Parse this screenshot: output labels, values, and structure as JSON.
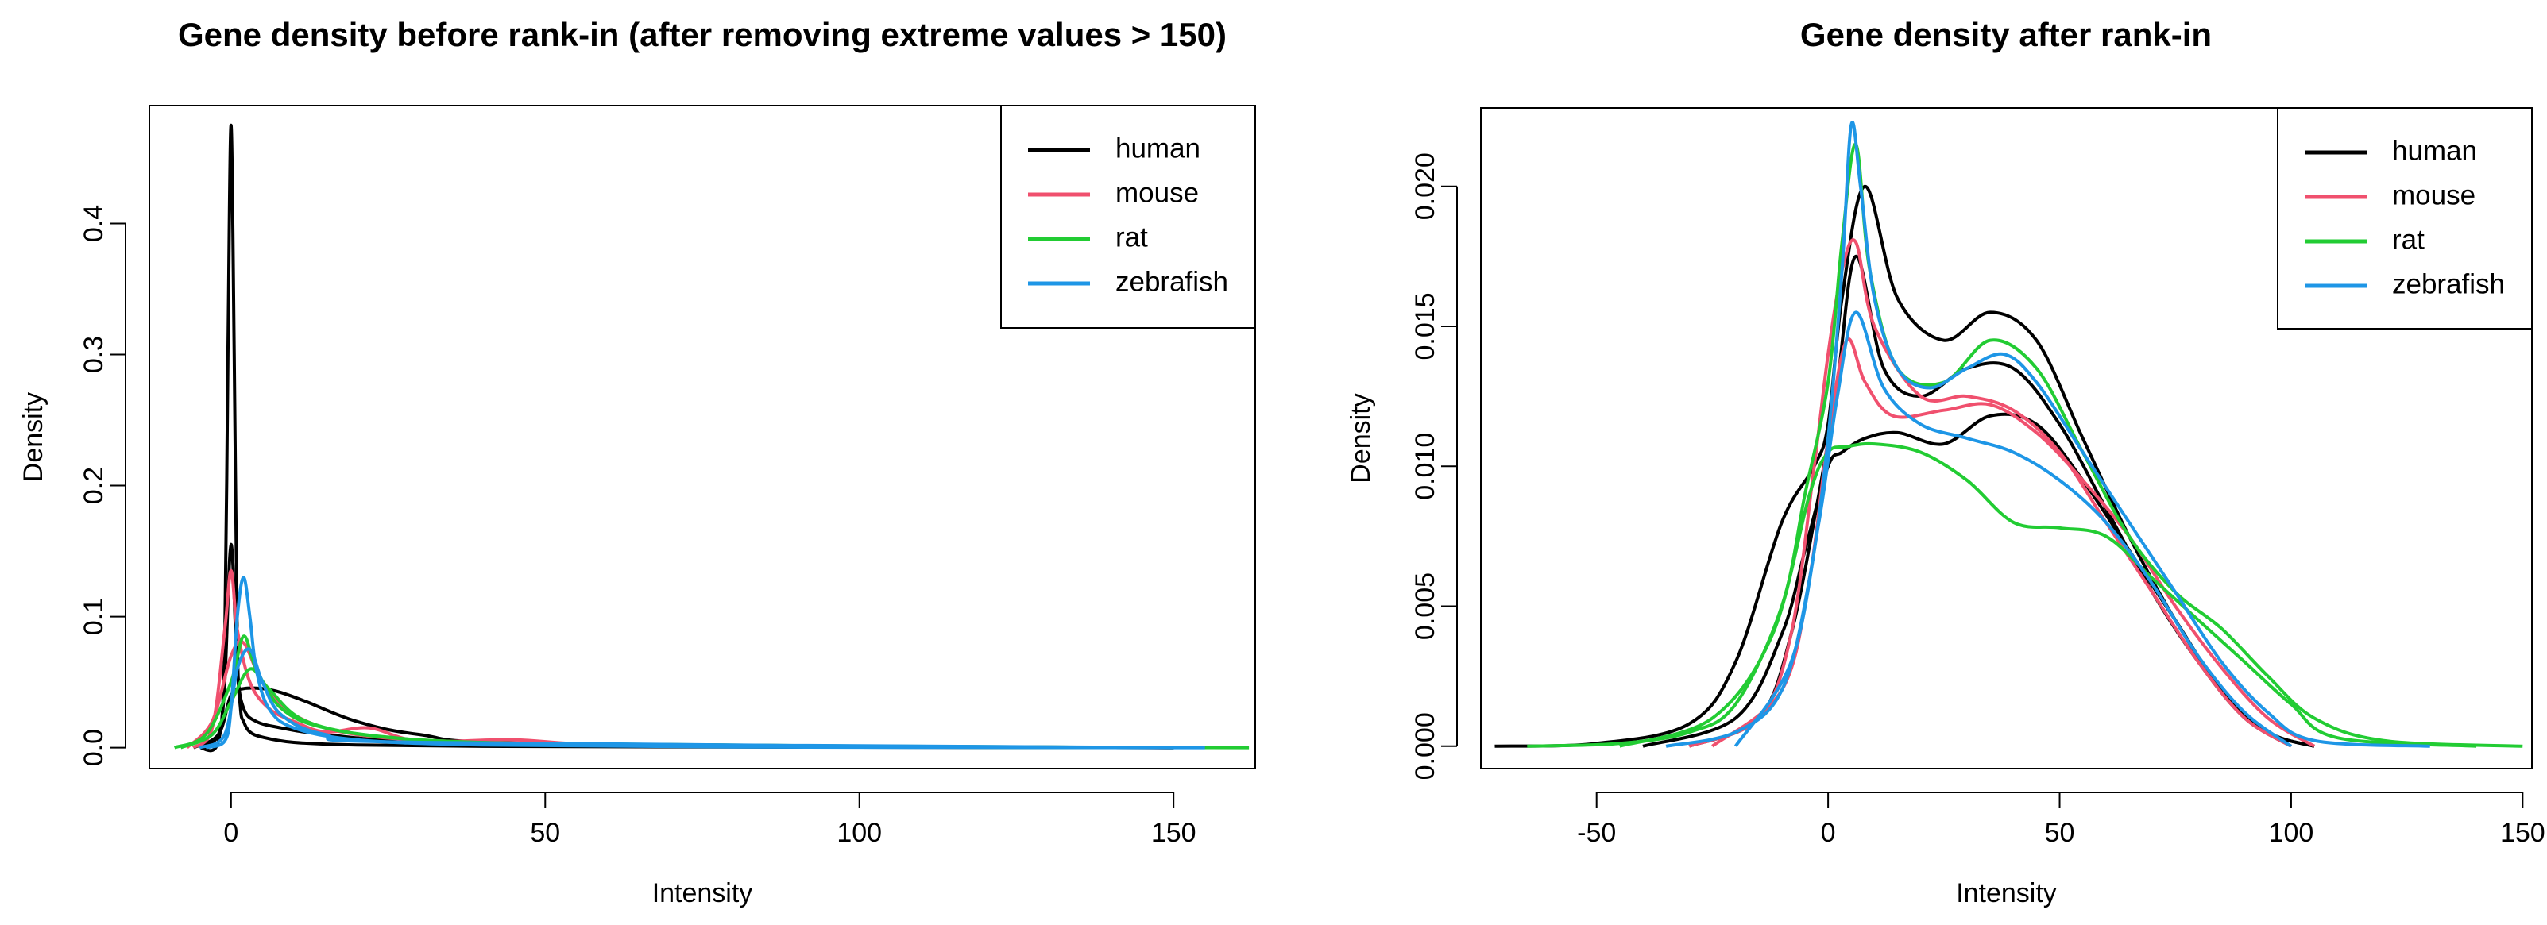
{
  "chart_data": [
    {
      "type": "line",
      "title": "Gene density before rank-in (after removing extreme values > 150)",
      "xlabel": "Intensity",
      "ylabel": "Density",
      "xlim": [
        -13,
        163
      ],
      "ylim": [
        -0.016,
        0.49
      ],
      "xticks": [
        0,
        50,
        100,
        150
      ],
      "yticks": [
        0.0,
        0.1,
        0.2,
        0.3,
        0.4
      ],
      "ytick_labels": [
        "0.0",
        "0.1",
        "0.2",
        "0.3",
        "0.4"
      ],
      "legend_position": "top-right",
      "series": [
        {
          "name": "human",
          "color": "#000000",
          "curves": [
            {
              "x": [
                -5,
                -2,
                -1,
                -0.5,
                0,
                0.5,
                1,
                1.5,
                2,
                3,
                5,
                10,
                20,
                40,
                80,
                150
              ],
              "y": [
                0,
                0.005,
                0.08,
                0.3,
                0.475,
                0.3,
                0.08,
                0.03,
                0.02,
                0.012,
                0.008,
                0.004,
                0.002,
                0.001,
                0.0005,
                0
              ]
            },
            {
              "x": [
                -5,
                -2,
                -1,
                0,
                1,
                2,
                4,
                8,
                15,
                30,
                60,
                150
              ],
              "y": [
                0,
                0.01,
                0.05,
                0.155,
                0.06,
                0.03,
                0.02,
                0.015,
                0.01,
                0.004,
                0.001,
                0
              ]
            },
            {
              "x": [
                -6,
                -2,
                0,
                2,
                5,
                8,
                12,
                20,
                30,
                50,
                150
              ],
              "y": [
                0,
                0.01,
                0.04,
                0.045,
                0.045,
                0.042,
                0.035,
                0.02,
                0.01,
                0.003,
                0
              ]
            }
          ]
        },
        {
          "name": "mouse",
          "color": "#f0506e",
          "curves": [
            {
              "x": [
                -6,
                -3,
                -1,
                0,
                1,
                3,
                6,
                10,
                15,
                22,
                30,
                45,
                60,
                100,
                150
              ],
              "y": [
                0,
                0.015,
                0.09,
                0.135,
                0.09,
                0.05,
                0.03,
                0.02,
                0.012,
                0.015,
                0.005,
                0.006,
                0.002,
                0.001,
                0
              ]
            },
            {
              "x": [
                -7,
                -3,
                0,
                2,
                5,
                10,
                20,
                40,
                80,
                150
              ],
              "y": [
                0,
                0.02,
                0.07,
                0.08,
                0.05,
                0.025,
                0.01,
                0.004,
                0.001,
                0
              ]
            }
          ]
        },
        {
          "name": "rat",
          "color": "#22cc33",
          "curves": [
            {
              "x": [
                -9,
                -4,
                0,
                2,
                4,
                8,
                15,
                30,
                60,
                100,
                162
              ],
              "y": [
                0,
                0.01,
                0.05,
                0.085,
                0.06,
                0.03,
                0.015,
                0.006,
                0.002,
                0.0005,
                0
              ]
            },
            {
              "x": [
                -8,
                -3,
                0,
                3,
                6,
                12,
                25,
                50,
                150
              ],
              "y": [
                0,
                0.01,
                0.035,
                0.06,
                0.045,
                0.02,
                0.008,
                0.003,
                0
              ]
            }
          ]
        },
        {
          "name": "zebrafish",
          "color": "#1e96e6",
          "curves": [
            {
              "x": [
                -4,
                -1,
                0,
                1,
                2,
                3,
                4,
                6,
                10,
                20,
                40,
                80,
                155
              ],
              "y": [
                0,
                0.005,
                0.03,
                0.1,
                0.13,
                0.1,
                0.06,
                0.03,
                0.015,
                0.006,
                0.002,
                0.0005,
                0
              ]
            },
            {
              "x": [
                -5,
                -1,
                1,
                3,
                5,
                8,
                15,
                30,
                150
              ],
              "y": [
                0,
                0.01,
                0.06,
                0.075,
                0.05,
                0.025,
                0.01,
                0.004,
                0
              ]
            }
          ]
        }
      ]
    },
    {
      "type": "line",
      "title": "Gene density after rank-in",
      "xlabel": "Intensity",
      "ylabel": "Density",
      "xlim": [
        -75,
        152
      ],
      "ylim": [
        -0.0008,
        0.0228
      ],
      "xticks": [
        -50,
        0,
        50,
        100,
        150
      ],
      "yticks": [
        0.0,
        0.005,
        0.01,
        0.015,
        0.02
      ],
      "ytick_labels": [
        "0.000",
        "0.005",
        "0.010",
        "0.015",
        "0.020"
      ],
      "legend_position": "top-right",
      "series": [
        {
          "name": "human",
          "color": "#000000",
          "curves": [
            {
              "x": [
                -72,
                -50,
                -30,
                -20,
                -10,
                -3,
                0,
                3,
                8,
                15,
                25,
                35,
                45,
                55,
                65,
                75,
                85,
                95,
                105
              ],
              "y": [
                0,
                0.0001,
                0.0008,
                0.003,
                0.008,
                0.01,
                0.0115,
                0.016,
                0.02,
                0.016,
                0.0145,
                0.0155,
                0.0145,
                0.011,
                0.0075,
                0.0045,
                0.002,
                0.0005,
                0
              ]
            },
            {
              "x": [
                -40,
                -20,
                -10,
                -5,
                0,
                3,
                8,
                15,
                25,
                35,
                45,
                55,
                65,
                75,
                85,
                95,
                105
              ],
              "y": [
                0,
                0.001,
                0.004,
                0.007,
                0.01,
                0.0105,
                0.011,
                0.0112,
                0.0108,
                0.0118,
                0.0115,
                0.0095,
                0.007,
                0.0045,
                0.002,
                0.0005,
                0
              ]
            },
            {
              "x": [
                -30,
                -15,
                -8,
                -2,
                2,
                6,
                12,
                20,
                30,
                40,
                50,
                60,
                70,
                80,
                90,
                100
              ],
              "y": [
                0,
                0.001,
                0.004,
                0.009,
                0.013,
                0.0175,
                0.0135,
                0.0125,
                0.0135,
                0.0135,
                0.0115,
                0.0085,
                0.0055,
                0.003,
                0.001,
                0
              ]
            }
          ]
        },
        {
          "name": "mouse",
          "color": "#f0506e",
          "curves": [
            {
              "x": [
                -30,
                -15,
                -8,
                -3,
                0,
                3,
                6,
                10,
                20,
                30,
                40,
                50,
                60,
                70,
                80,
                90,
                100
              ],
              "y": [
                0,
                0.001,
                0.004,
                0.01,
                0.014,
                0.017,
                0.018,
                0.015,
                0.0125,
                0.0125,
                0.012,
                0.0105,
                0.008,
                0.0055,
                0.003,
                0.001,
                0
              ]
            },
            {
              "x": [
                -25,
                -10,
                -4,
                0,
                4,
                8,
                14,
                25,
                35,
                45,
                55,
                65,
                75,
                85,
                95,
                105
              ],
              "y": [
                0,
                0.002,
                0.006,
                0.011,
                0.0145,
                0.013,
                0.0118,
                0.012,
                0.0122,
                0.0112,
                0.0095,
                0.0075,
                0.005,
                0.0028,
                0.001,
                0
              ]
            }
          ]
        },
        {
          "name": "rat",
          "color": "#22cc33",
          "curves": [
            {
              "x": [
                -65,
                -45,
                -30,
                -20,
                -10,
                -5,
                0,
                3,
                6,
                9,
                15,
                25,
                35,
                45,
                55,
                65,
                75,
                85,
                95,
                105,
                120,
                150
              ],
              "y": [
                0,
                0.0001,
                0.0005,
                0.0015,
                0.005,
                0.009,
                0.013,
                0.018,
                0.0215,
                0.017,
                0.0135,
                0.013,
                0.0145,
                0.0135,
                0.0105,
                0.0075,
                0.0055,
                0.0042,
                0.0025,
                0.001,
                0.0002,
                0
              ]
            },
            {
              "x": [
                -45,
                -25,
                -12,
                -4,
                0,
                4,
                10,
                20,
                30,
                40,
                50,
                60,
                70,
                80,
                90,
                100,
                110,
                140
              ],
              "y": [
                0,
                0.001,
                0.004,
                0.009,
                0.0105,
                0.0107,
                0.0108,
                0.0105,
                0.0095,
                0.008,
                0.0078,
                0.0075,
                0.006,
                0.0045,
                0.003,
                0.0015,
                0.0003,
                0
              ]
            }
          ]
        },
        {
          "name": "zebrafish",
          "color": "#1e96e6",
          "curves": [
            {
              "x": [
                -35,
                -20,
                -10,
                -4,
                0,
                3,
                5,
                7,
                10,
                15,
                22,
                30,
                38,
                45,
                55,
                65,
                75,
                85,
                95,
                105,
                130
              ],
              "y": [
                0,
                0.0005,
                0.002,
                0.006,
                0.011,
                0.017,
                0.0222,
                0.02,
                0.016,
                0.0135,
                0.0128,
                0.0135,
                0.014,
                0.013,
                0.0105,
                0.008,
                0.0055,
                0.003,
                0.0012,
                0.0002,
                0
              ]
            },
            {
              "x": [
                -20,
                -8,
                -2,
                2,
                6,
                12,
                20,
                30,
                40,
                50,
                60,
                70,
                80,
                90,
                100
              ],
              "y": [
                0,
                0.003,
                0.008,
                0.0125,
                0.0155,
                0.0128,
                0.0115,
                0.011,
                0.0105,
                0.0095,
                0.008,
                0.0058,
                0.0032,
                0.0012,
                0
              ]
            }
          ]
        }
      ]
    }
  ]
}
